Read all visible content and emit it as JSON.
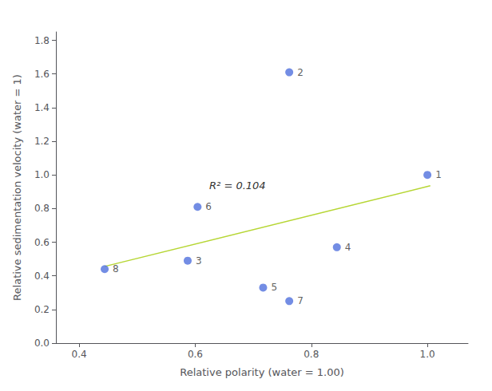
{
  "chart_data": {
    "type": "scatter",
    "xlabel": "Relative polarity (water = 1.00)",
    "ylabel": "Relative sedimentation velocity (water = 1)",
    "annotation": "R² = 0.104",
    "series": [
      {
        "type": "scatter",
        "x": [
          1.0,
          0.762,
          0.587,
          0.844,
          0.717,
          0.604,
          0.762,
          0.444
        ],
        "values": [
          1.0,
          1.61,
          0.49,
          0.57,
          0.33,
          0.81,
          0.25,
          0.44
        ],
        "labels": [
          "1",
          "2",
          "3",
          "4",
          "5",
          "6",
          "7",
          "8"
        ]
      },
      {
        "type": "line",
        "x": [
          0.444,
          1.005
        ],
        "values": [
          0.4559,
          0.9354
        ]
      }
    ],
    "xlim": [
      0.36,
      1.07
    ],
    "ylim": [
      0.0,
      1.85
    ],
    "xticks": [
      0.4,
      0.6,
      0.8,
      {
        "value": 1.0,
        "label": "1.0"
      }
    ],
    "yticks": [
      {
        "value": 0.0,
        "label": "0.0"
      },
      0.2,
      0.4,
      0.6,
      0.8,
      {
        "value": 1.0,
        "label": "1.0"
      },
      1.2,
      1.4,
      1.6,
      1.8
    ],
    "grid": false
  }
}
